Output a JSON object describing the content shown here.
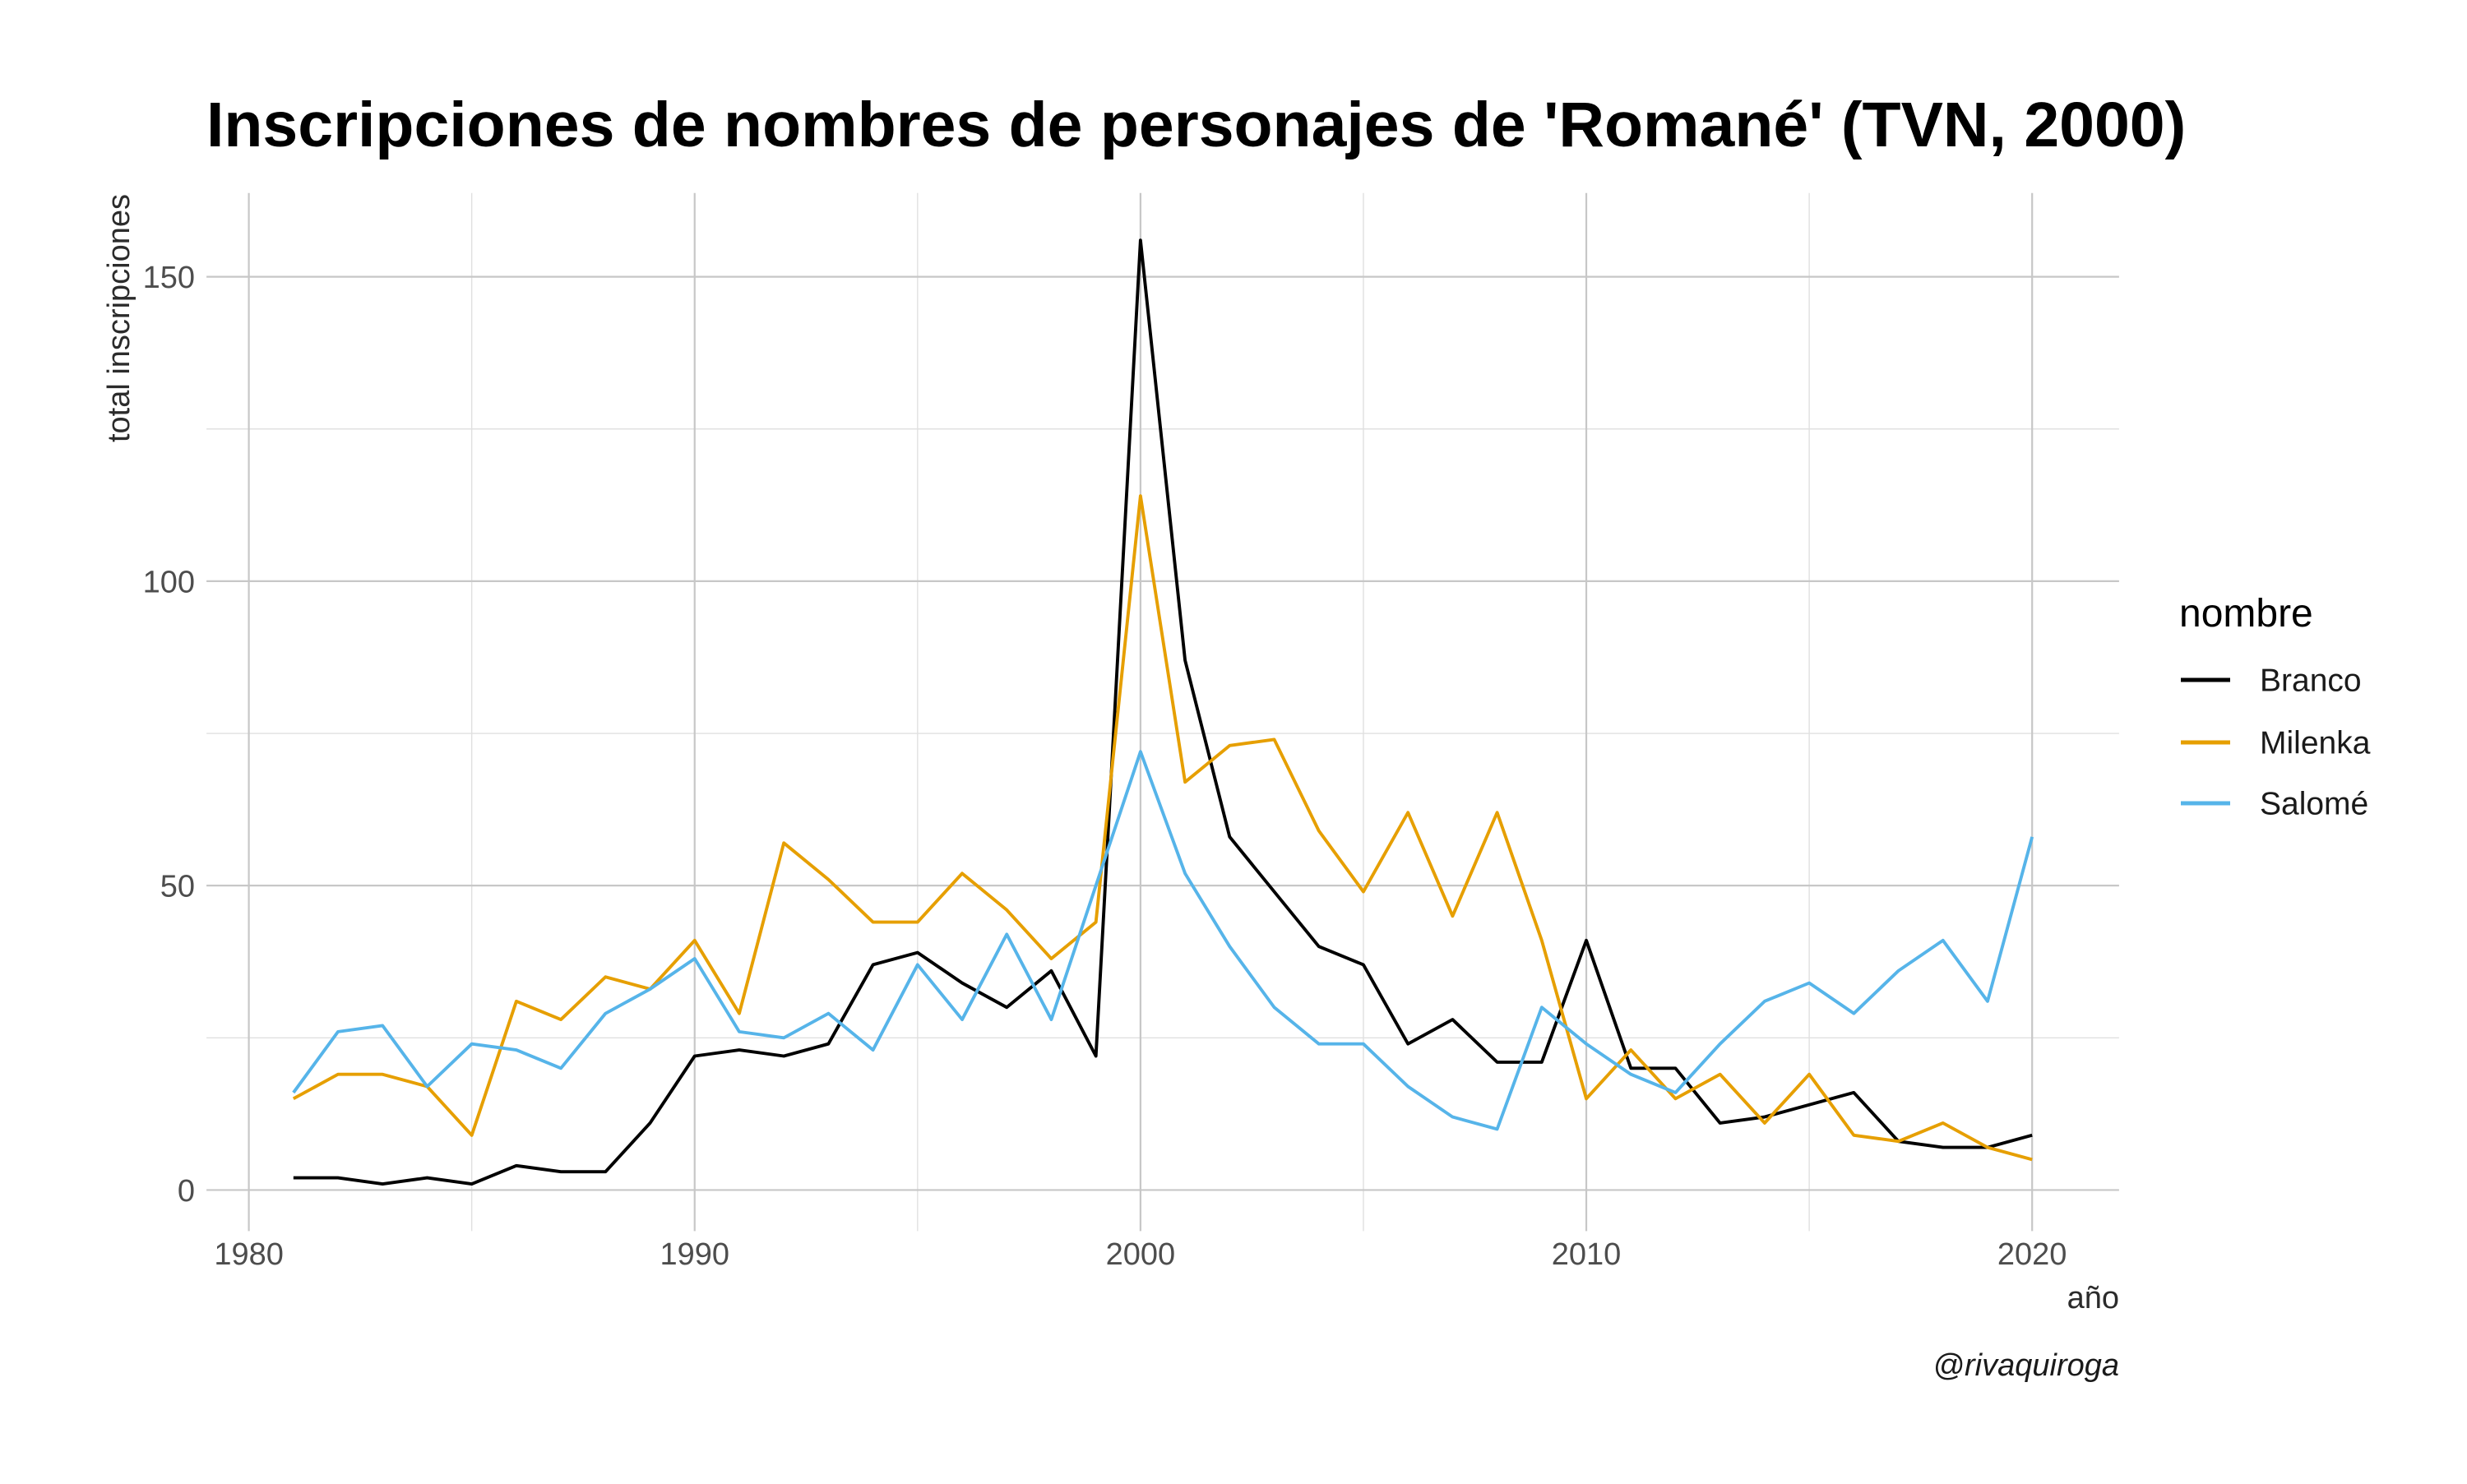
{
  "chart_data": {
    "type": "line",
    "title": "Inscripciones de nombres de personajes de 'Romané' (TVN, 2000)",
    "xlabel": "año",
    "ylabel": "total inscripciones",
    "caption": "@rivaquiroga",
    "legend_title": "nombre",
    "legend_position": "right",
    "grid": true,
    "x": [
      1981,
      1982,
      1983,
      1984,
      1985,
      1986,
      1987,
      1988,
      1989,
      1990,
      1991,
      1992,
      1993,
      1994,
      1995,
      1996,
      1997,
      1998,
      1999,
      2000,
      2001,
      2002,
      2003,
      2004,
      2005,
      2006,
      2007,
      2008,
      2009,
      2010,
      2011,
      2012,
      2013,
      2014,
      2015,
      2016,
      2017,
      2018,
      2019,
      2020
    ],
    "series": [
      {
        "name": "Branco",
        "color": "#000000",
        "values": [
          2,
          2,
          1,
          2,
          1,
          4,
          3,
          3,
          11,
          22,
          23,
          22,
          24,
          37,
          39,
          34,
          30,
          36,
          22,
          156,
          87,
          58,
          49,
          40,
          37,
          24,
          28,
          21,
          21,
          41,
          20,
          20,
          11,
          12,
          14,
          16,
          8,
          7,
          7,
          9
        ]
      },
      {
        "name": "Milenka",
        "color": "#E69F00",
        "values": [
          15,
          19,
          19,
          17,
          9,
          31,
          28,
          35,
          33,
          41,
          29,
          57,
          51,
          44,
          44,
          52,
          46,
          38,
          44,
          114,
          67,
          73,
          74,
          59,
          49,
          62,
          45,
          62,
          41,
          15,
          23,
          15,
          19,
          11,
          19,
          9,
          8,
          11,
          7,
          5
        ]
      },
      {
        "name": "Salomé",
        "color": "#56B4E9",
        "values": [
          16,
          26,
          27,
          17,
          24,
          23,
          20,
          29,
          33,
          38,
          26,
          25,
          29,
          23,
          37,
          28,
          42,
          28,
          50,
          72,
          52,
          40,
          30,
          24,
          24,
          17,
          12,
          10,
          30,
          24,
          19,
          16,
          24,
          31,
          34,
          29,
          36,
          41,
          31,
          58
        ]
      }
    ],
    "x_ticks": [
      1980,
      1990,
      2000,
      2010,
      2020
    ],
    "y_ticks": [
      0,
      50,
      100,
      150
    ],
    "x_minor_ticks": [
      1985,
      1995,
      2005,
      2015
    ],
    "y_minor_ticks": [
      25,
      75,
      125
    ],
    "xlim": [
      1979.05,
      2021.95
    ],
    "ylim": [
      -6.75,
      163.75
    ]
  }
}
